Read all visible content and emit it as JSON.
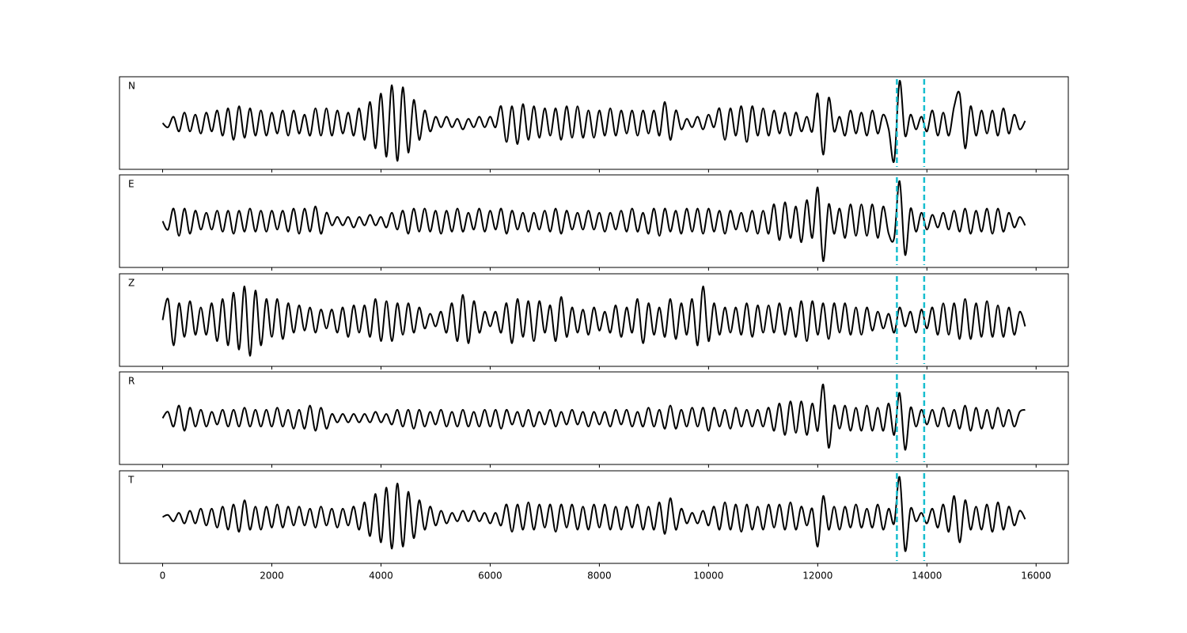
{
  "chart_data": {
    "type": "line",
    "xlim": [
      -790,
      16590
    ],
    "xticks": [
      0,
      2000,
      4000,
      6000,
      8000,
      10000,
      12000,
      14000,
      16000
    ],
    "ylim": [
      -1.1,
      1.1
    ],
    "markers": [
      13450,
      13950
    ],
    "marker_color": "#17becf",
    "x": [
      0,
      100,
      200,
      300,
      400,
      500,
      600,
      700,
      800,
      900,
      1000,
      1100,
      1200,
      1300,
      1400,
      1500,
      1600,
      1700,
      1800,
      1900,
      2000,
      2100,
      2200,
      2300,
      2400,
      2500,
      2600,
      2700,
      2800,
      2900,
      3000,
      3100,
      3200,
      3300,
      3400,
      3500,
      3600,
      3700,
      3800,
      3900,
      4000,
      4100,
      4200,
      4300,
      4400,
      4500,
      4600,
      4700,
      4800,
      4900,
      5000,
      5100,
      5200,
      5300,
      5400,
      5500,
      5600,
      5700,
      5800,
      5900,
      6000,
      6100,
      6200,
      6300,
      6400,
      6500,
      6600,
      6700,
      6800,
      6900,
      7000,
      7100,
      7200,
      7300,
      7400,
      7500,
      7600,
      7700,
      7800,
      7900,
      8000,
      8100,
      8200,
      8300,
      8400,
      8500,
      8600,
      8700,
      8800,
      8900,
      9000,
      9100,
      9200,
      9300,
      9400,
      9500,
      9600,
      9700,
      9800,
      9900,
      10000,
      10100,
      10200,
      10300,
      10400,
      10500,
      10600,
      10700,
      10800,
      10900,
      11000,
      11100,
      11200,
      11300,
      11400,
      11500,
      11600,
      11700,
      11800,
      11900,
      12000,
      12100,
      12200,
      12300,
      12400,
      12500,
      12600,
      12700,
      12800,
      12900,
      13000,
      13100,
      13200,
      13300,
      13400,
      13500,
      13600,
      13700,
      13800,
      13900,
      14000,
      14100,
      14200,
      14300,
      14400,
      14500,
      14600,
      14700,
      14800,
      14900,
      15000,
      15100,
      15200,
      15300,
      15400,
      15500,
      15600,
      15700,
      15800
    ],
    "panels": [
      {
        "name": "N",
        "color": "#000000",
        "values": [
          0,
          -0.1,
          0.15,
          -0.2,
          0.25,
          -0.2,
          0.2,
          -0.25,
          0.25,
          -0.2,
          0.3,
          -0.3,
          0.35,
          -0.4,
          0.4,
          -0.35,
          0.35,
          -0.3,
          0.3,
          -0.3,
          0.25,
          -0.25,
          0.3,
          -0.3,
          0.3,
          -0.25,
          0.2,
          -0.3,
          0.35,
          -0.3,
          0.35,
          -0.3,
          0.3,
          -0.25,
          0.25,
          -0.3,
          0.35,
          -0.4,
          0.5,
          -0.6,
          0.7,
          -0.8,
          0.9,
          -0.9,
          0.85,
          -0.7,
          0.55,
          -0.4,
          0.3,
          -0.2,
          0.15,
          -0.1,
          0.15,
          -0.1,
          0.1,
          -0.15,
          0.1,
          -0.1,
          0.15,
          -0.1,
          0.15,
          -0.1,
          0.4,
          -0.45,
          0.4,
          -0.5,
          0.45,
          -0.4,
          0.4,
          -0.35,
          0.35,
          -0.3,
          0.35,
          -0.4,
          0.4,
          -0.35,
          0.4,
          -0.35,
          0.3,
          -0.35,
          0.3,
          -0.3,
          0.35,
          -0.3,
          0.3,
          -0.25,
          0.3,
          -0.3,
          0.3,
          -0.25,
          0.3,
          -0.3,
          0.5,
          -0.4,
          0.3,
          -0.15,
          0.1,
          -0.1,
          0.15,
          -0.15,
          0.2,
          -0.1,
          0.35,
          -0.4,
          0.35,
          -0.3,
          0.4,
          -0.45,
          0.4,
          -0.3,
          0.35,
          -0.3,
          0.3,
          -0.25,
          0.25,
          -0.3,
          0.25,
          -0.2,
          0.15,
          -0.2,
          0.7,
          -0.75,
          0.6,
          -0.2,
          0.15,
          -0.3,
          0.3,
          -0.25,
          0.25,
          -0.3,
          0.3,
          -0.25,
          0.2,
          -0.15,
          -0.9,
          1.0,
          -0.3,
          0.2,
          -0.15,
          0.15,
          -0.2,
          0.3,
          -0.3,
          0.25,
          -0.3,
          0.4,
          0.7,
          -0.6,
          0.4,
          -0.3,
          0.3,
          -0.25,
          0.3,
          -0.3,
          0.35,
          -0.25,
          0.2,
          -0.15,
          0.05
        ]
      },
      {
        "name": "E",
        "color": "#000000",
        "values": [
          0,
          -0.2,
          0.3,
          -0.35,
          0.3,
          -0.3,
          0.25,
          -0.2,
          0.2,
          -0.2,
          0.25,
          -0.25,
          0.25,
          -0.3,
          0.25,
          -0.25,
          0.3,
          -0.25,
          0.25,
          -0.25,
          0.25,
          -0.2,
          0.25,
          -0.25,
          0.3,
          -0.3,
          0.3,
          -0.25,
          0.35,
          -0.3,
          0.2,
          -0.1,
          0.1,
          -0.1,
          0.1,
          -0.15,
          0.1,
          -0.1,
          0.15,
          -0.1,
          0.1,
          -0.15,
          0.2,
          -0.2,
          0.25,
          -0.3,
          0.3,
          -0.25,
          0.3,
          -0.25,
          0.25,
          -0.3,
          0.25,
          -0.25,
          0.3,
          -0.25,
          0.2,
          -0.2,
          0.3,
          -0.25,
          0.25,
          -0.2,
          0.3,
          -0.3,
          0.25,
          -0.2,
          0.2,
          -0.25,
          0.2,
          -0.2,
          0.25,
          -0.25,
          0.3,
          -0.3,
          0.25,
          -0.2,
          0.2,
          -0.2,
          0.25,
          -0.2,
          0.2,
          -0.25,
          0.2,
          -0.2,
          0.25,
          -0.25,
          0.3,
          -0.25,
          0.2,
          -0.3,
          0.3,
          -0.35,
          0.3,
          -0.25,
          0.25,
          -0.3,
          0.3,
          -0.25,
          0.3,
          -0.3,
          0.3,
          -0.25,
          0.25,
          -0.3,
          0.25,
          -0.2,
          0.2,
          -0.25,
          0.25,
          -0.3,
          0.25,
          -0.3,
          0.4,
          -0.45,
          0.45,
          -0.4,
          0.35,
          -0.5,
          0.5,
          -0.4,
          0.8,
          -0.95,
          0.4,
          -0.3,
          0.3,
          -0.4,
          0.4,
          -0.35,
          0.4,
          -0.35,
          0.4,
          -0.4,
          0.35,
          -0.3,
          -0.4,
          0.95,
          -0.8,
          0.3,
          -0.25,
          0.2,
          -0.2,
          0.15,
          -0.15,
          0.2,
          -0.2,
          0.25,
          -0.25,
          0.3,
          -0.3,
          0.25,
          -0.25,
          0.3,
          -0.3,
          0.3,
          -0.25,
          0.2,
          -0.15,
          0.1,
          -0.1
        ]
      },
      {
        "name": "Z",
        "color": "#000000",
        "values": [
          0,
          0.5,
          -0.6,
          0.4,
          -0.4,
          0.45,
          -0.35,
          0.3,
          -0.35,
          0.4,
          -0.5,
          0.5,
          -0.6,
          0.65,
          -0.7,
          0.8,
          -0.85,
          0.7,
          -0.6,
          0.5,
          -0.4,
          0.5,
          -0.45,
          0.4,
          -0.3,
          0.35,
          -0.25,
          0.3,
          -0.3,
          0.25,
          -0.2,
          0.25,
          -0.3,
          0.3,
          -0.4,
          0.35,
          -0.3,
          0.35,
          -0.4,
          0.5,
          -0.5,
          0.45,
          -0.5,
          0.4,
          -0.35,
          0.4,
          -0.3,
          0.3,
          -0.2,
          0.15,
          -0.15,
          0.2,
          -0.3,
          0.4,
          -0.5,
          0.6,
          -0.55,
          0.45,
          -0.3,
          0.2,
          -0.15,
          0.2,
          -0.3,
          0.4,
          -0.55,
          0.5,
          -0.4,
          0.45,
          -0.5,
          0.45,
          -0.3,
          0.35,
          -0.5,
          0.55,
          -0.4,
          0.3,
          -0.3,
          0.25,
          -0.35,
          0.3,
          -0.25,
          0.2,
          -0.3,
          0.35,
          -0.4,
          0.3,
          -0.3,
          0.5,
          -0.55,
          0.4,
          -0.35,
          0.3,
          -0.4,
          0.5,
          -0.45,
          0.4,
          -0.35,
          0.5,
          -0.6,
          0.8,
          -0.5,
          0.4,
          -0.35,
          0.3,
          -0.3,
          0.3,
          -0.35,
          0.4,
          -0.4,
          0.35,
          -0.3,
          0.35,
          -0.3,
          0.4,
          -0.35,
          0.3,
          -0.4,
          0.45,
          -0.5,
          0.45,
          -0.35,
          0.4,
          -0.45,
          0.4,
          -0.3,
          0.4,
          -0.35,
          0.3,
          -0.35,
          0.3,
          -0.25,
          0.2,
          -0.2,
          0.15,
          -0.3,
          0.3,
          -0.15,
          0.2,
          -0.3,
          0.25,
          -0.2,
          0.3,
          -0.35,
          0.4,
          -0.35,
          0.4,
          -0.45,
          0.5,
          -0.45,
          0.4,
          -0.4,
          0.45,
          -0.4,
          0.35,
          -0.4,
          0.3,
          -0.35,
          0.2,
          -0.15
        ]
      },
      {
        "name": "R",
        "color": "#000000",
        "values": [
          0,
          0.15,
          -0.2,
          0.3,
          -0.3,
          0.25,
          -0.2,
          0.2,
          -0.2,
          0.15,
          -0.15,
          0.2,
          -0.2,
          0.2,
          -0.2,
          0.25,
          -0.2,
          0.2,
          -0.2,
          0.2,
          -0.2,
          0.25,
          -0.2,
          0.2,
          -0.25,
          0.2,
          -0.25,
          0.3,
          -0.3,
          0.25,
          -0.25,
          0.1,
          -0.1,
          0.1,
          -0.1,
          0.1,
          -0.1,
          0.1,
          -0.1,
          0.15,
          -0.1,
          0.1,
          -0.15,
          0.2,
          -0.2,
          0.2,
          -0.25,
          0.2,
          -0.2,
          0.15,
          -0.15,
          0.2,
          -0.2,
          0.15,
          -0.2,
          0.2,
          -0.2,
          0.15,
          -0.2,
          0.2,
          -0.2,
          0.2,
          -0.25,
          0.2,
          -0.15,
          0.15,
          -0.2,
          0.2,
          -0.2,
          0.15,
          -0.15,
          0.2,
          -0.2,
          0.15,
          -0.15,
          0.2,
          -0.15,
          0.15,
          -0.2,
          0.15,
          -0.15,
          0.15,
          -0.2,
          0.2,
          -0.15,
          0.2,
          -0.2,
          0.15,
          -0.2,
          0.25,
          -0.2,
          0.2,
          -0.25,
          0.3,
          -0.25,
          0.2,
          -0.2,
          0.25,
          -0.2,
          0.25,
          -0.3,
          0.25,
          -0.2,
          0.2,
          -0.25,
          0.25,
          -0.2,
          0.2,
          -0.2,
          0.2,
          -0.2,
          0.25,
          -0.3,
          0.35,
          -0.4,
          0.4,
          -0.35,
          0.4,
          -0.4,
          0.35,
          -0.3,
          0.8,
          -0.7,
          0.3,
          -0.25,
          0.3,
          -0.3,
          0.25,
          -0.3,
          0.3,
          -0.3,
          0.25,
          -0.3,
          0.35,
          -0.4,
          0.6,
          -0.75,
          0.25,
          -0.2,
          0.2,
          -0.15,
          0.2,
          -0.2,
          0.25,
          -0.2,
          0.2,
          -0.25,
          0.3,
          -0.3,
          0.25,
          -0.25,
          0.2,
          -0.25,
          0.25,
          -0.2,
          0.2,
          -0.2,
          0.15,
          0.2
        ]
      },
      {
        "name": "T",
        "color": "#000000",
        "values": [
          0,
          0.05,
          -0.1,
          0.1,
          -0.15,
          0.15,
          -0.15,
          0.2,
          -0.2,
          0.2,
          -0.25,
          0.25,
          -0.3,
          0.3,
          -0.35,
          0.4,
          -0.3,
          0.25,
          -0.3,
          0.25,
          -0.25,
          0.3,
          -0.25,
          0.25,
          -0.2,
          0.25,
          -0.2,
          0.2,
          -0.25,
          0.25,
          -0.2,
          0.2,
          -0.25,
          0.2,
          -0.2,
          0.25,
          -0.3,
          0.35,
          -0.45,
          0.55,
          -0.6,
          0.7,
          -0.75,
          0.8,
          -0.7,
          0.6,
          -0.5,
          0.4,
          -0.3,
          0.25,
          -0.2,
          0.15,
          -0.15,
          0.1,
          -0.1,
          0.15,
          -0.1,
          0.15,
          -0.1,
          0.1,
          -0.15,
          0.1,
          -0.2,
          0.3,
          -0.35,
          0.3,
          -0.3,
          0.35,
          -0.3,
          0.3,
          -0.25,
          0.3,
          -0.35,
          0.3,
          -0.25,
          0.3,
          -0.3,
          0.25,
          -0.3,
          0.3,
          -0.25,
          0.3,
          -0.3,
          0.25,
          -0.3,
          0.25,
          -0.25,
          0.3,
          -0.3,
          0.25,
          -0.3,
          0.35,
          -0.4,
          0.45,
          -0.3,
          0.2,
          -0.15,
          0.1,
          -0.15,
          0.15,
          -0.2,
          0.25,
          -0.3,
          0.35,
          -0.3,
          0.3,
          -0.35,
          0.3,
          -0.3,
          0.25,
          -0.3,
          0.3,
          -0.25,
          0.3,
          -0.3,
          0.35,
          -0.3,
          0.25,
          -0.2,
          0.2,
          -0.7,
          0.5,
          -0.3,
          0.25,
          -0.3,
          0.25,
          -0.25,
          0.3,
          -0.25,
          0.2,
          -0.25,
          0.3,
          -0.3,
          0.2,
          -0.15,
          0.95,
          -0.8,
          0.2,
          -0.1,
          0.1,
          -0.15,
          0.2,
          -0.25,
          0.3,
          -0.35,
          0.5,
          -0.6,
          0.4,
          -0.3,
          0.25,
          -0.3,
          0.3,
          -0.35,
          0.35,
          -0.3,
          0.25,
          -0.2,
          0.15,
          -0.05
        ]
      }
    ]
  }
}
